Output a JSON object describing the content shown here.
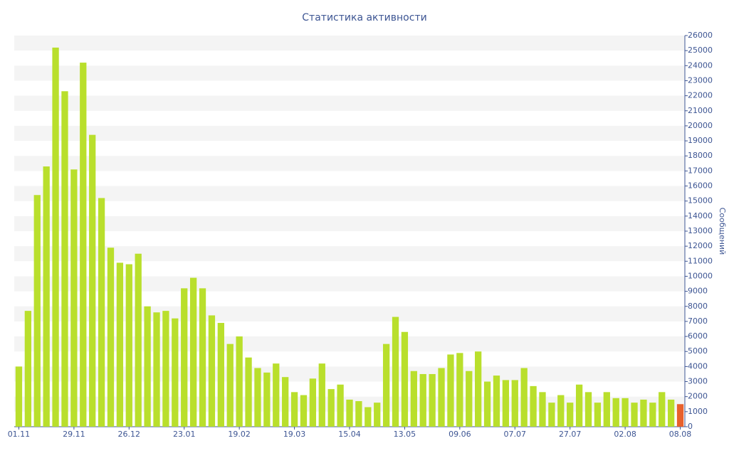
{
  "chart_data": {
    "type": "bar",
    "title": "Статистика активности",
    "y_label": "Сообщений",
    "categories": [
      "01.11",
      null,
      null,
      null,
      null,
      null,
      "29.11",
      null,
      null,
      null,
      null,
      null,
      "26.12",
      null,
      null,
      null,
      null,
      null,
      "23.01",
      null,
      null,
      null,
      null,
      null,
      "19.02",
      null,
      null,
      null,
      null,
      null,
      "19.03",
      null,
      null,
      null,
      null,
      null,
      "15.04",
      null,
      null,
      null,
      null,
      null,
      "13.05",
      null,
      null,
      null,
      null,
      null,
      "09.06",
      null,
      null,
      null,
      null,
      null,
      "07.07",
      null,
      null,
      null,
      null,
      null,
      "27.07",
      null,
      null,
      null,
      null,
      null,
      "02.08",
      null,
      null,
      null,
      null,
      null,
      "08.08"
    ],
    "values": [
      4000,
      7700,
      15400,
      17300,
      25200,
      22300,
      17100,
      24200,
      19400,
      15200,
      11900,
      10900,
      10800,
      11500,
      8000,
      7600,
      7700,
      7200,
      9200,
      9900,
      9200,
      7400,
      6900,
      5500,
      6000,
      4600,
      3900,
      3600,
      4200,
      3300,
      2300,
      2100,
      3200,
      4200,
      2500,
      2800,
      1800,
      1700,
      1300,
      1600,
      5500,
      7300,
      6300,
      3700,
      3500,
      3500,
      3900,
      4800,
      4900,
      3700,
      5000,
      3000,
      3400,
      3100,
      3100,
      3900,
      2700,
      2300,
      1600,
      2100,
      1600,
      2800,
      2300,
      1600,
      2300,
      1900,
      1900,
      1600,
      1800,
      1600,
      2300,
      1800,
      1500
    ],
    "color": "#b9df2c",
    "last_color": "#e8612c",
    "ylim": [
      0,
      26000
    ],
    "yticks": [
      0,
      1000,
      2000,
      3000,
      4000,
      5000,
      6000,
      7000,
      8000,
      9000,
      10000,
      11000,
      12000,
      13000,
      14000,
      15000,
      16000,
      17000,
      18000,
      19000,
      20000,
      21000,
      22000,
      23000,
      24000,
      25000,
      26000
    ],
    "y_axis_side": "right",
    "grid": "stripes"
  }
}
